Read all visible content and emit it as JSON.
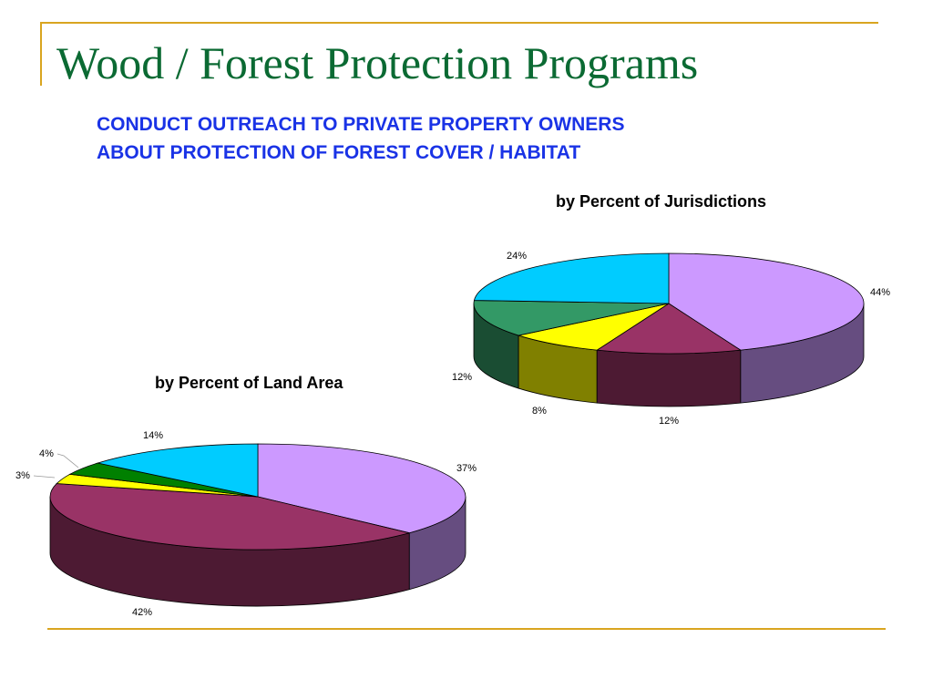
{
  "title": "Wood / Forest Protection Programs",
  "subtitle_lines": [
    "CONDUCT OUTREACH TO PRIVATE PROPERTY OWNERS",
    "ABOUT PROTECTION OF FOREST COVER / HABITAT"
  ],
  "colors": {
    "title": "#0b6a33",
    "subtitle": "#1a33e6",
    "rules": "#d9a520"
  },
  "chart_data": [
    {
      "type": "pie",
      "title": "by Percent of Jurisdictions",
      "style": "3d",
      "slices": [
        {
          "label": "44%",
          "value": 44,
          "color": "#cc99ff"
        },
        {
          "label": "12%",
          "value": 12,
          "color": "#993366"
        },
        {
          "label": "8%",
          "value": 8,
          "color": "#ffff00"
        },
        {
          "label": "12%",
          "value": 12,
          "color": "#339966"
        },
        {
          "label": "24%",
          "value": 24,
          "color": "#00ccff"
        }
      ]
    },
    {
      "type": "pie",
      "title": "by Percent of Land Area",
      "style": "3d",
      "slices": [
        {
          "label": "37%",
          "value": 37,
          "color": "#cc99ff"
        },
        {
          "label": "42%",
          "value": 42,
          "color": "#993366"
        },
        {
          "label": "3%",
          "value": 3,
          "color": "#ffff00"
        },
        {
          "label": "4%",
          "value": 4,
          "color": "#008000"
        },
        {
          "label": "14%",
          "value": 14,
          "color": "#00ccff"
        }
      ]
    }
  ]
}
